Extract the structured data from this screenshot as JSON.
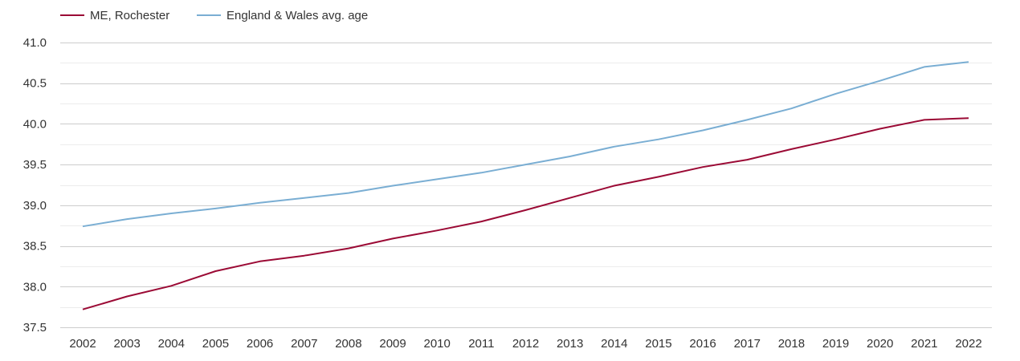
{
  "chart_data": {
    "type": "line",
    "title": "",
    "xlabel": "",
    "ylabel": "",
    "x": [
      "2002",
      "2003",
      "2004",
      "2005",
      "2006",
      "2007",
      "2008",
      "2009",
      "2010",
      "2011",
      "2012",
      "2013",
      "2014",
      "2015",
      "2016",
      "2017",
      "2018",
      "2019",
      "2020",
      "2021",
      "2022"
    ],
    "ylim": [
      37.5,
      41.0
    ],
    "yticks": [
      "37.5",
      "38.0",
      "38.5",
      "39.0",
      "39.5",
      "40.0",
      "40.5",
      "41.0"
    ],
    "grid": true,
    "legend_position": "top-left",
    "series": [
      {
        "name": "ME, Rochester",
        "color": "#9b0a35",
        "values": [
          37.72,
          37.88,
          38.01,
          38.19,
          38.31,
          38.38,
          38.47,
          38.59,
          38.69,
          38.8,
          38.94,
          39.09,
          39.24,
          39.35,
          39.47,
          39.56,
          39.69,
          39.81,
          39.94,
          40.05,
          40.07
        ]
      },
      {
        "name": "England & Wales avg. age",
        "color": "#7aaed3",
        "values": [
          38.74,
          38.83,
          38.9,
          38.96,
          39.03,
          39.09,
          39.15,
          39.24,
          39.32,
          39.4,
          39.5,
          39.6,
          39.72,
          39.81,
          39.92,
          40.05,
          40.19,
          40.37,
          40.53,
          40.7,
          40.76
        ]
      }
    ]
  }
}
